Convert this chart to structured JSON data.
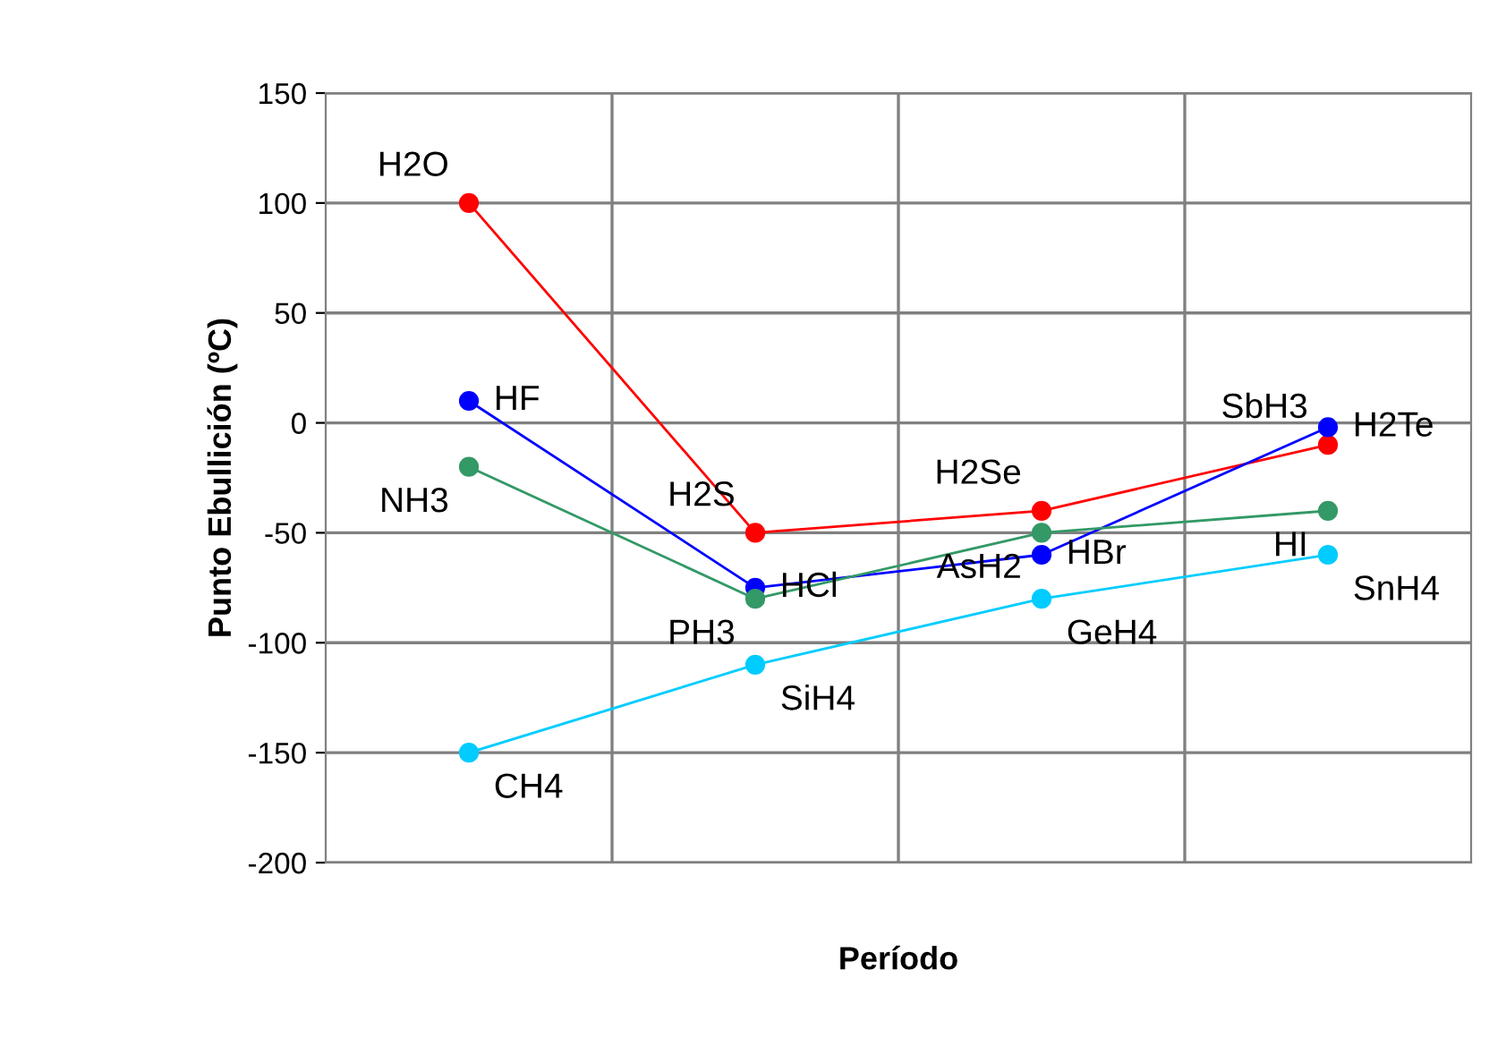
{
  "chart_data": {
    "type": "line",
    "xlabel": "Período",
    "ylabel": "Punto Ebullición (ºC)",
    "categories": [
      null,
      null,
      null,
      null
    ],
    "ylim": [
      -200,
      150
    ],
    "yticks": [
      -200,
      -150,
      -100,
      -50,
      0,
      50,
      100,
      150
    ],
    "grid": true,
    "marker": "circle",
    "line_style": "solid",
    "series": [
      {
        "color": "#ff0000",
        "values": [
          100,
          -50,
          -40,
          -10
        ],
        "value_labels": [
          "H2O",
          "H2S",
          "H2Se",
          "SbH3"
        ]
      },
      {
        "color": "#0000ff",
        "values": [
          10,
          -75,
          -60,
          -2
        ],
        "value_labels": [
          "HF",
          "HCl",
          "HBr",
          "H2Te"
        ]
      },
      {
        "color": "#339966",
        "values": [
          -20,
          -80,
          -50,
          -40
        ],
        "value_labels": [
          "NH3",
          "PH3",
          "AsH2",
          "HI"
        ]
      },
      {
        "color": "#00ccff",
        "values": [
          -150,
          -110,
          -80,
          -60
        ],
        "value_labels": [
          "CH4",
          "SiH4",
          "GeH4",
          "SnH4"
        ]
      }
    ]
  }
}
